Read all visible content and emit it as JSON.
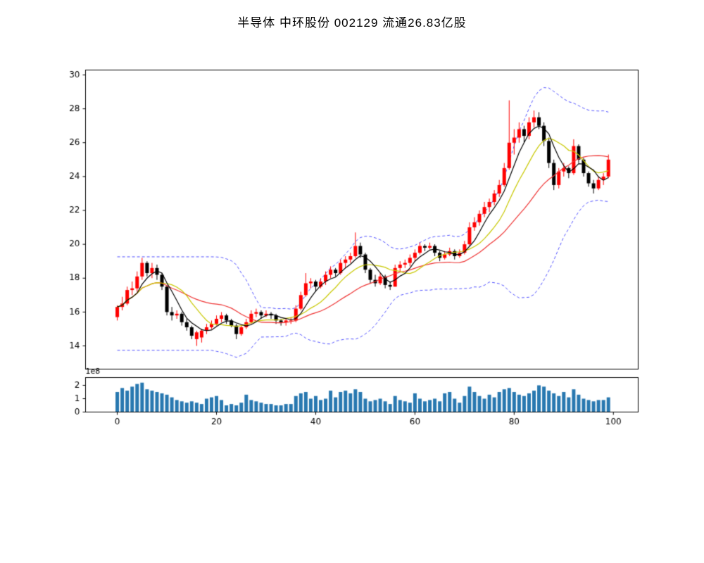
{
  "header": {
    "title": "半导体 中环股份 002129 流通26.83亿股"
  },
  "chart_data": {
    "type": "candlestick",
    "title": "半导体 中环股份 002129 流通26.83亿股",
    "xlabel": "",
    "ylabel": "",
    "price_axis": {
      "min": 12.63,
      "max": 30.29,
      "ticks": [
        14,
        16,
        18,
        20,
        22,
        24,
        26,
        28,
        30
      ]
    },
    "x_axis": {
      "min": -6.4,
      "max": 105,
      "ticks": [
        0,
        20,
        40,
        60,
        80,
        100
      ]
    },
    "volume_axis": {
      "min": 0,
      "max": 2.58,
      "ticks": [
        0,
        1,
        2
      ],
      "offset_label": "1e8"
    },
    "grid": false,
    "legend": false,
    "colors": {
      "up": "#ff0000",
      "down": "#000000",
      "volume_bar": "#2878b0",
      "ma_short": "#000000",
      "ma_mid": "#c8c800",
      "ma_long": "#ee3333",
      "bollinger": "#5050ff",
      "axis": "#000000"
    },
    "overlays": {
      "ma_short_period": 5,
      "ma_mid_period": 10,
      "ma_long_period": 20,
      "bollinger_period": 20,
      "bollinger_mult": 2
    },
    "ohlc": [
      [
        15.7,
        16.4,
        15.5,
        16.3
      ],
      [
        16.3,
        16.9,
        16.1,
        16.5
      ],
      [
        16.5,
        17.5,
        16.4,
        17.3
      ],
      [
        17.3,
        17.8,
        17.0,
        17.4
      ],
      [
        17.4,
        18.4,
        17.2,
        18.1
      ],
      [
        18.1,
        19.2,
        17.9,
        18.9
      ],
      [
        18.9,
        19.0,
        18.1,
        18.3
      ],
      [
        18.3,
        18.9,
        18.0,
        18.6
      ],
      [
        18.6,
        18.8,
        17.9,
        18.2
      ],
      [
        18.2,
        18.3,
        17.3,
        17.5
      ],
      [
        17.5,
        17.6,
        15.8,
        16.0
      ],
      [
        16.0,
        16.3,
        15.5,
        15.8
      ],
      [
        15.8,
        16.1,
        15.6,
        15.9
      ],
      [
        15.9,
        16.0,
        15.2,
        15.4
      ],
      [
        15.4,
        15.6,
        14.9,
        15.1
      ],
      [
        15.1,
        15.2,
        14.4,
        14.6
      ],
      [
        14.4,
        14.9,
        14.0,
        14.8
      ],
      [
        14.5,
        15.0,
        14.2,
        14.9
      ],
      [
        14.9,
        15.3,
        14.7,
        15.1
      ],
      [
        15.1,
        15.5,
        15.0,
        15.3
      ],
      [
        15.3,
        15.8,
        15.2,
        15.6
      ],
      [
        15.6,
        16.0,
        15.4,
        15.8
      ],
      [
        15.8,
        15.9,
        15.3,
        15.5
      ],
      [
        15.5,
        15.6,
        15.1,
        15.2
      ],
      [
        15.2,
        15.3,
        14.4,
        14.7
      ],
      [
        14.7,
        15.2,
        14.6,
        15.1
      ],
      [
        15.1,
        15.6,
        15.0,
        15.4
      ],
      [
        15.4,
        16.1,
        15.3,
        15.9
      ],
      [
        15.9,
        16.2,
        15.7,
        16.0
      ],
      [
        16.0,
        16.1,
        15.6,
        15.8
      ],
      [
        15.8,
        16.1,
        15.7,
        15.9
      ],
      [
        15.9,
        16.0,
        15.6,
        15.8
      ],
      [
        15.8,
        15.9,
        15.3,
        15.5
      ],
      [
        15.5,
        15.6,
        15.2,
        15.4
      ],
      [
        15.4,
        15.6,
        15.2,
        15.5
      ],
      [
        15.5,
        15.7,
        15.3,
        15.5
      ],
      [
        15.5,
        16.4,
        15.4,
        16.2
      ],
      [
        16.2,
        17.2,
        16.1,
        17.0
      ],
      [
        17.0,
        18.3,
        16.9,
        17.7
      ],
      [
        17.7,
        18.0,
        17.4,
        17.8
      ],
      [
        17.8,
        17.9,
        17.2,
        17.5
      ],
      [
        17.5,
        18.0,
        17.4,
        17.8
      ],
      [
        17.8,
        18.4,
        17.6,
        18.2
      ],
      [
        18.2,
        18.7,
        18.0,
        18.5
      ],
      [
        18.5,
        18.6,
        18.1,
        18.3
      ],
      [
        18.3,
        19.1,
        18.2,
        18.9
      ],
      [
        18.9,
        19.3,
        18.6,
        19.1
      ],
      [
        19.1,
        19.5,
        18.9,
        19.3
      ],
      [
        19.3,
        20.7,
        19.2,
        19.9
      ],
      [
        19.9,
        20.1,
        19.2,
        19.4
      ],
      [
        19.4,
        19.5,
        18.3,
        18.5
      ],
      [
        18.5,
        18.6,
        17.7,
        17.9
      ],
      [
        17.9,
        18.2,
        17.5,
        17.7
      ],
      [
        17.7,
        18.3,
        17.6,
        18.1
      ],
      [
        18.1,
        18.2,
        17.4,
        17.6
      ],
      [
        17.6,
        17.8,
        17.3,
        17.5
      ],
      [
        17.5,
        18.8,
        17.5,
        18.6
      ],
      [
        18.6,
        19.0,
        18.4,
        18.8
      ],
      [
        18.8,
        19.1,
        18.6,
        18.9
      ],
      [
        18.9,
        19.4,
        18.7,
        19.2
      ],
      [
        19.2,
        19.7,
        19.0,
        19.5
      ],
      [
        19.5,
        20.1,
        19.4,
        19.9
      ],
      [
        19.9,
        20.0,
        19.6,
        19.8
      ],
      [
        19.8,
        20.1,
        19.7,
        19.9
      ],
      [
        19.9,
        20.0,
        19.3,
        19.5
      ],
      [
        19.5,
        19.6,
        19.0,
        19.2
      ],
      [
        19.2,
        19.6,
        19.1,
        19.4
      ],
      [
        19.4,
        19.8,
        19.3,
        19.6
      ],
      [
        19.6,
        19.7,
        19.1,
        19.3
      ],
      [
        19.3,
        19.7,
        19.2,
        19.5
      ],
      [
        19.5,
        20.2,
        19.4,
        20.0
      ],
      [
        20.0,
        21.3,
        19.9,
        21.0
      ],
      [
        21.0,
        21.6,
        20.8,
        21.3
      ],
      [
        21.3,
        22.0,
        21.1,
        21.8
      ],
      [
        21.8,
        22.5,
        21.6,
        22.2
      ],
      [
        22.2,
        22.7,
        21.9,
        22.5
      ],
      [
        22.5,
        23.2,
        22.3,
        23.0
      ],
      [
        23.0,
        23.8,
        22.8,
        23.5
      ],
      [
        23.5,
        24.8,
        23.4,
        24.5
      ],
      [
        24.5,
        28.5,
        24.4,
        26.0
      ],
      [
        26.0,
        26.8,
        25.3,
        26.3
      ],
      [
        26.3,
        27.2,
        26.0,
        26.8
      ],
      [
        26.8,
        27.0,
        26.0,
        26.4
      ],
      [
        26.4,
        27.5,
        26.2,
        27.2
      ],
      [
        27.2,
        27.9,
        26.9,
        27.5
      ],
      [
        27.5,
        27.8,
        26.8,
        27.0
      ],
      [
        27.0,
        27.2,
        25.8,
        26.1
      ],
      [
        26.1,
        26.3,
        24.5,
        24.8
      ],
      [
        24.8,
        25.0,
        23.2,
        23.5
      ],
      [
        23.5,
        24.5,
        23.3,
        24.3
      ],
      [
        24.3,
        24.8,
        24.0,
        24.5
      ],
      [
        24.5,
        24.6,
        23.9,
        24.2
      ],
      [
        24.2,
        26.2,
        24.1,
        25.8
      ],
      [
        25.8,
        25.9,
        24.8,
        25.0
      ],
      [
        25.0,
        25.1,
        24.0,
        24.2
      ],
      [
        24.2,
        24.3,
        23.4,
        23.6
      ],
      [
        23.6,
        23.8,
        23.0,
        23.3
      ],
      [
        23.3,
        24.0,
        23.2,
        23.8
      ],
      [
        23.8,
        24.2,
        23.5,
        24.0
      ],
      [
        24.0,
        25.3,
        23.9,
        25.0
      ]
    ],
    "volume_1e8": [
      1.5,
      1.8,
      1.6,
      1.9,
      2.1,
      2.2,
      1.7,
      1.6,
      1.5,
      1.4,
      1.3,
      1.1,
      0.9,
      0.8,
      0.7,
      0.8,
      0.7,
      0.6,
      1.0,
      1.1,
      1.2,
      0.9,
      0.5,
      0.6,
      0.5,
      0.7,
      1.3,
      0.9,
      0.8,
      0.7,
      0.6,
      0.6,
      0.5,
      0.5,
      0.6,
      0.6,
      1.2,
      1.4,
      1.5,
      1.0,
      1.2,
      0.9,
      1.0,
      1.6,
      1.1,
      1.5,
      1.6,
      1.4,
      1.7,
      1.5,
      1.0,
      0.8,
      0.9,
      1.0,
      0.8,
      0.6,
      1.2,
      0.9,
      0.8,
      0.7,
      1.4,
      1.0,
      0.8,
      0.9,
      1.0,
      0.8,
      1.4,
      1.5,
      1.0,
      0.7,
      1.2,
      1.9,
      1.5,
      1.2,
      1.0,
      1.3,
      1.1,
      1.5,
      1.7,
      1.8,
      1.5,
      1.3,
      1.2,
      1.4,
      1.6,
      2.0,
      1.9,
      1.6,
      1.4,
      1.2,
      1.5,
      1.1,
      1.7,
      1.3,
      1.0,
      0.9,
      0.8,
      0.9,
      0.9,
      1.1
    ]
  }
}
